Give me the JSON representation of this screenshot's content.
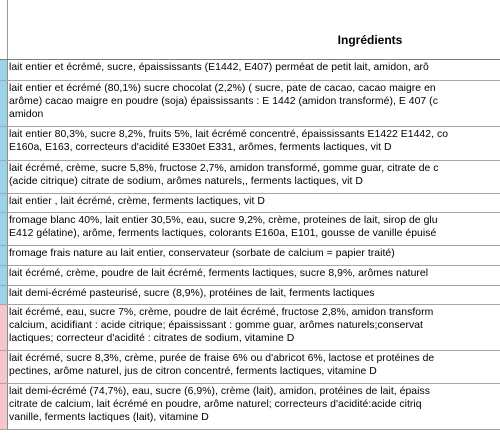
{
  "header": {
    "title": "Ingrédients"
  },
  "colors": {
    "blue_stripe": "#9dd3e8",
    "pink_stripe": "#f4c7cc"
  },
  "rows": [
    {
      "lines": [
        "lait entier et écrémé, sucre, épaississants (E1442, E407) perméat de petit lait, amidon, arô"
      ]
    },
    {
      "lines": [
        "lait entier et écrémé (80,1%) sucre chocolat (2,2%) ( sucre, pate de cacao, cacao maigre en",
        "arôme) cacao maigre en poudre (soja) épaississants : E 1442 (amidon transformé), E 407 (c",
        "amidon"
      ]
    },
    {
      "lines": [
        "lait entier 80,3%, sucre 8,2%, fruits 5%, lait écrémé concentré, épaississants E1422 E1442, co",
        "E160a, E163, correcteurs d'acidité E330et E331, arômes, ferments lactiques, vit D"
      ]
    },
    {
      "lines": [
        "lait écrémé, crème, sucre 5,8%, fructose 2,7%, amidon transformé, gomme guar, citrate de c",
        "(acide citrique) citrate de sodium, arômes naturels,, ferments lactiques, vit D"
      ]
    },
    {
      "lines": [
        "lait entier , lait écrémé, crème, ferments lactiques, vit D"
      ]
    },
    {
      "lines": [
        "fromage blanc 40%, lait entier 30,5%, eau, sucre 9,2%, crème, proteines de lait, sirop de glu",
        "E412 gélatine), arôme, ferments lactiques, colorants E160a, E101, gousse de vanille épuisé"
      ]
    },
    {
      "lines": [
        "fromage frais nature au lait entier, conservateur (sorbate de calcium = papier traité)"
      ]
    },
    {
      "lines": [
        "lait écrémé, crème, poudre de lait écrémé, ferments lactiques, sucre 8,9%, arômes naturel"
      ]
    },
    {
      "lines": [
        "lait demi-écrémé pasteurisé, sucre (8,9%), protéines de lait, ferments lactiques"
      ]
    },
    {
      "lines": [
        "lait écrémé, eau, sucre 7%, crème, poudre de lait écrémé, fructose 2,8%, amidon transform",
        "calcium, acidifiant : acide citrique; épaississant : gomme guar, arômes naturels;conservat",
        "lactiques; correcteur d'acidité : citrates de sodium, vitamine D"
      ]
    },
    {
      "lines": [
        "lait écrémé, sucre 8,3%, crème, purée de fraise 6% ou d'abricot 6%, lactose et protéines de",
        "pectines, arôme naturel, jus de citron concentré, ferments lactiques, vitamine D"
      ]
    },
    {
      "lines": [
        "lait demi-écrémé (74,7%), eau, sucre (6,9%), crème (lait), amidon, protéines de lait, épaiss",
        "citrate de calcium, lait écrémé en poudre, arôme naturel; correcteurs d'acidité:acide citriq",
        "vanille, ferments lactiques (lait), vitamine D"
      ]
    }
  ]
}
